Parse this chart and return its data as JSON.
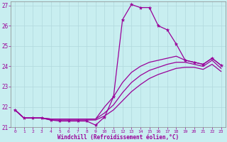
{
  "xlabel": "Windchill (Refroidissement éolien,°C)",
  "bg_color": "#c8eef0",
  "grid_color": "#b0d8dc",
  "line_color": "#990099",
  "xlim": [
    -0.5,
    23.5
  ],
  "ylim": [
    21.0,
    27.2
  ],
  "yticks": [
    21,
    22,
    23,
    24,
    25,
    26,
    27
  ],
  "xticks": [
    0,
    1,
    2,
    3,
    4,
    5,
    6,
    7,
    8,
    9,
    10,
    11,
    12,
    13,
    14,
    15,
    16,
    17,
    18,
    19,
    20,
    21,
    22,
    23
  ],
  "series": [
    {
      "x": [
        0,
        1,
        2,
        3,
        4,
        5,
        6,
        7,
        8,
        9,
        10,
        11,
        12,
        13,
        14,
        15,
        16,
        17,
        18,
        19,
        20,
        21,
        22,
        23
      ],
      "y": [
        21.85,
        21.45,
        21.45,
        21.45,
        21.35,
        21.3,
        21.3,
        21.3,
        21.3,
        21.1,
        21.5,
        22.5,
        26.3,
        27.05,
        26.9,
        26.9,
        26.0,
        25.8,
        25.1,
        24.3,
        24.2,
        24.1,
        24.4,
        24.05
      ],
      "marker": true
    },
    {
      "x": [
        0,
        1,
        2,
        3,
        4,
        5,
        6,
        7,
        8,
        9,
        10,
        11,
        12,
        13,
        14,
        15,
        16,
        17,
        18,
        19,
        20,
        21,
        22,
        23
      ],
      "y": [
        21.85,
        21.45,
        21.45,
        21.45,
        21.4,
        21.4,
        21.4,
        21.4,
        21.4,
        21.4,
        22.0,
        22.5,
        23.2,
        23.7,
        24.0,
        24.2,
        24.3,
        24.4,
        24.5,
        24.3,
        24.2,
        24.1,
        24.4,
        24.05
      ],
      "marker": false
    },
    {
      "x": [
        0,
        1,
        2,
        3,
        4,
        5,
        6,
        7,
        8,
        9,
        10,
        11,
        12,
        13,
        14,
        15,
        16,
        17,
        18,
        19,
        20,
        21,
        22,
        23
      ],
      "y": [
        21.85,
        21.45,
        21.45,
        21.45,
        21.4,
        21.4,
        21.4,
        21.4,
        21.4,
        21.4,
        21.7,
        22.1,
        22.7,
        23.2,
        23.55,
        23.8,
        23.95,
        24.1,
        24.2,
        24.2,
        24.1,
        24.0,
        24.3,
        23.9
      ],
      "marker": false
    },
    {
      "x": [
        0,
        1,
        2,
        3,
        4,
        5,
        6,
        7,
        8,
        9,
        10,
        11,
        12,
        13,
        14,
        15,
        16,
        17,
        18,
        19,
        20,
        21,
        22,
        23
      ],
      "y": [
        21.85,
        21.45,
        21.45,
        21.45,
        21.35,
        21.35,
        21.35,
        21.35,
        21.35,
        21.35,
        21.55,
        21.85,
        22.3,
        22.75,
        23.1,
        23.4,
        23.6,
        23.75,
        23.9,
        23.95,
        23.95,
        23.85,
        24.1,
        23.75
      ],
      "marker": false
    }
  ]
}
